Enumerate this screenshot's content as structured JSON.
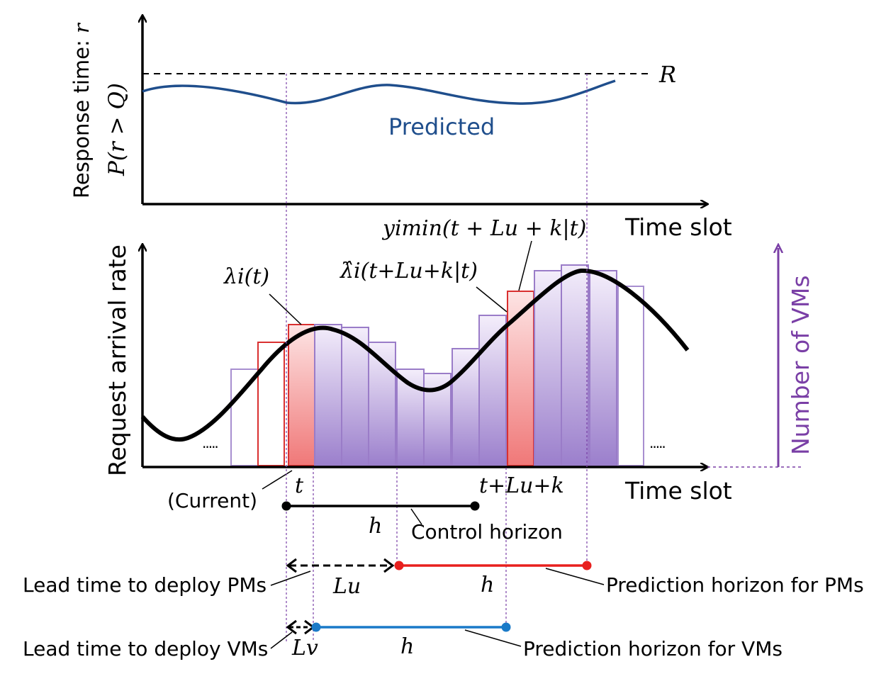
{
  "top_plot": {
    "y_label": "Response time: ",
    "y_label_var": "r",
    "prob_label": "P(r > Q)",
    "threshold_label": "R",
    "curve_label": "Predicted",
    "x_label": "Time slot"
  },
  "bottom_plot": {
    "y_label": "Request arrival rate",
    "x_label": "Time slot",
    "right_axis_label": "Number of VMs",
    "lambda_label": "λi(t)",
    "lambda_hat_label": "λ̂i(t+Lu+k|t)",
    "ymin_label": "yimin(t + Lu + k|t)",
    "ellipsis_left": ".....",
    "ellipsis_right": ".....",
    "tick_t": "t",
    "tick_current": "(Current)",
    "tick_tlk": "t+Lu+k"
  },
  "horizons": {
    "control_h": "h",
    "control_label": "Control horizon",
    "pm_lead_label": "Lead time to deploy PMs",
    "pm_lead_sym": "Lu",
    "pm_h": "h",
    "pm_pred_label": "Prediction horizon for PMs",
    "vm_lead_label": "Lead time to deploy VMs",
    "vm_lead_sym": "Lv",
    "vm_h": "h",
    "vm_pred_label": "Prediction horizon for VMs"
  },
  "colors": {
    "predicted_curve": "#1f4e8c",
    "threshold": "#000000",
    "arrival_curve": "#000000",
    "vm_bar": "#a88fd0",
    "pm_bar": "#e04848",
    "axis_purple": "#7a3fa6",
    "pm_horizon": "#e8201e",
    "vm_horizon": "#1a7ac8"
  }
}
